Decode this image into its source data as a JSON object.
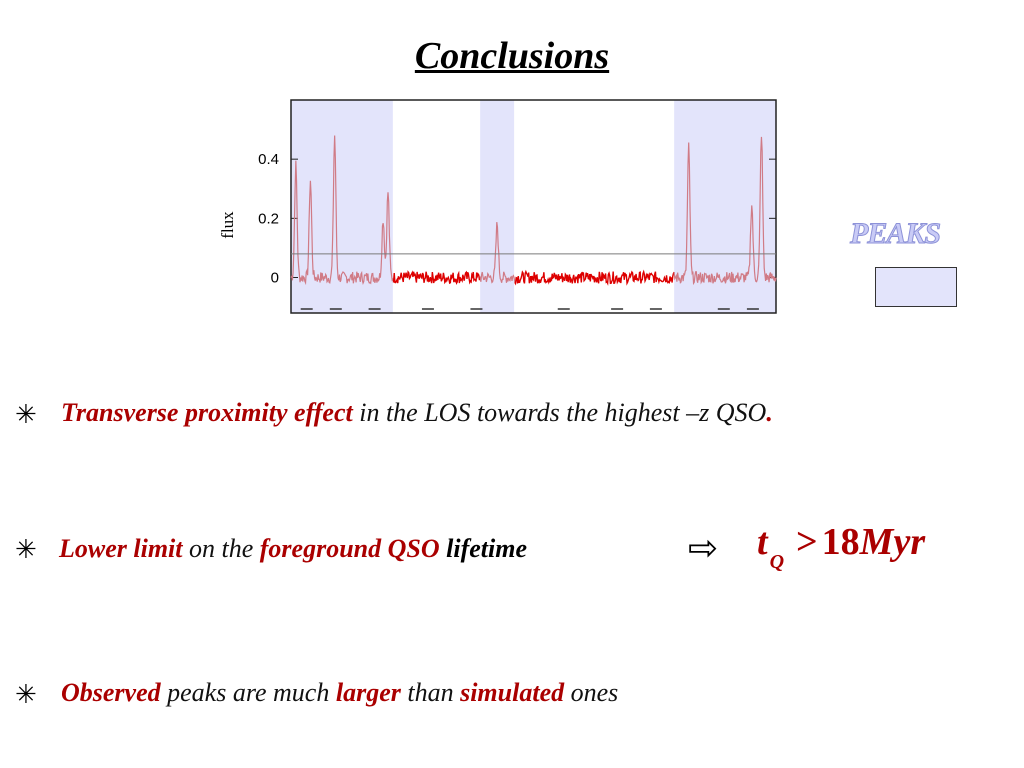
{
  "title": "Conclusions",
  "chart_data": {
    "type": "line",
    "ylabel": "flux",
    "yticks": [
      "0",
      "0.2",
      "0.4"
    ],
    "ylim": [
      -0.12,
      0.6
    ],
    "xlim": [
      0,
      1
    ],
    "peak_regions": [
      [
        0,
        0.21
      ],
      [
        0.39,
        0.46
      ],
      [
        0.79,
        1.0
      ]
    ],
    "threshold": 0.08,
    "baseline_noise": 0.02,
    "peaks": [
      {
        "x": 0.01,
        "y": 0.38
      },
      {
        "x": 0.04,
        "y": 0.33
      },
      {
        "x": 0.09,
        "y": 0.48
      },
      {
        "x": 0.19,
        "y": 0.2
      },
      {
        "x": 0.2,
        "y": 0.29
      },
      {
        "x": 0.425,
        "y": 0.18
      },
      {
        "x": 0.82,
        "y": 0.44
      },
      {
        "x": 0.95,
        "y": 0.25
      },
      {
        "x": 0.97,
        "y": 0.49
      }
    ],
    "series_colors": {
      "peak": "#d07b86",
      "flux": "#dd0000",
      "threshold": "#7a7a7a",
      "region": "#e3e4fb"
    }
  },
  "legend": {
    "label": "PEAKS"
  },
  "bullets": {
    "b1": {
      "star": "✳",
      "t1": "Transverse proximity effect",
      "t2": " in the LOS towards the highest –z QSO",
      "t3": "."
    },
    "b2": {
      "star": "✳",
      "t1": "Lower limit",
      "t2": " on the ",
      "t3": "foreground QSO",
      "t4": " lifetime",
      "arrow": "⇨",
      "f_t": "t",
      "f_sub": "Q",
      "f_gt": ">",
      "f_num": "18",
      "f_unit": "Myr"
    },
    "b3": {
      "star": "✳",
      "t1": "Observed",
      "t2": " peaks are much ",
      "t3": "larger",
      "t4": " than ",
      "t5": "simulated",
      "t6": " ones"
    }
  }
}
